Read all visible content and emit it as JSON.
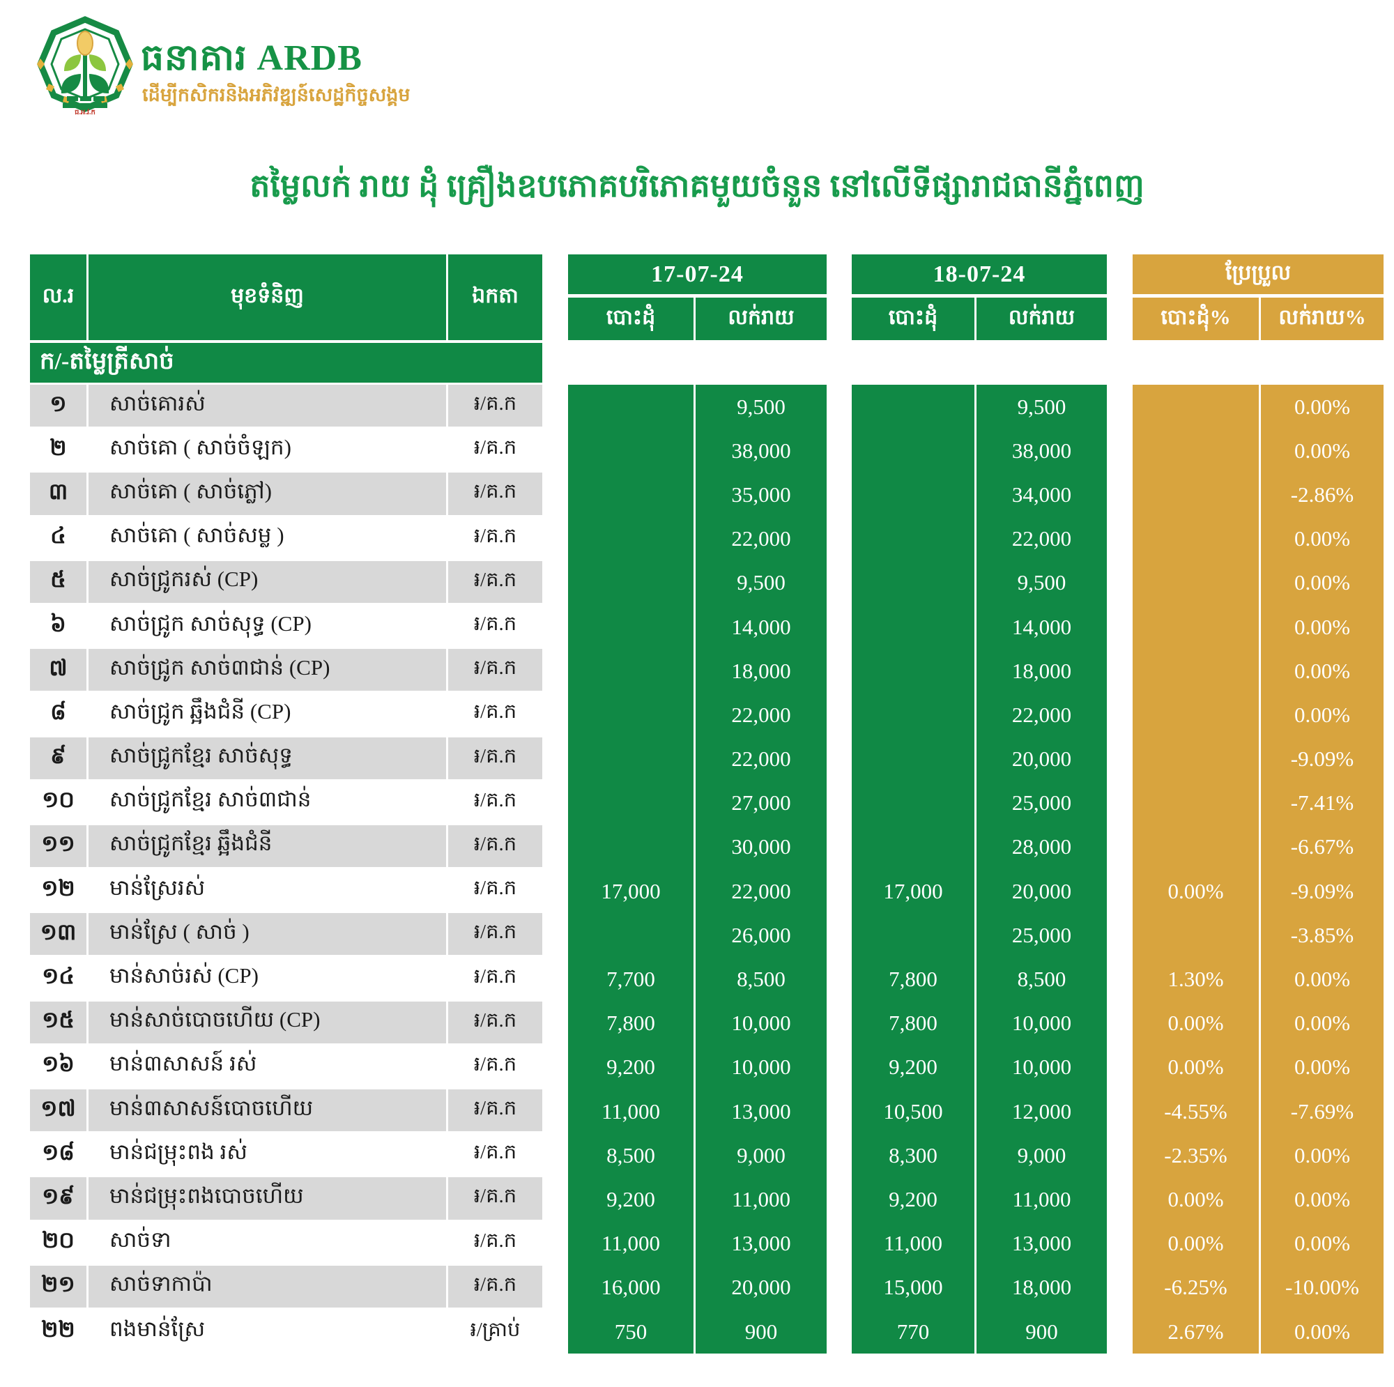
{
  "logo": {
    "bank_name": "ធនាគារ ARDB",
    "tagline": "ដើម្បីកសិករនិងអភិវឌ្ឍន៍សេដ្ឋកិច្ចសង្គម",
    "seal_text": "ធ.អ.វ.ក"
  },
  "title": "តម្លៃលក់ រាយ ដុំ គ្រឿងឧបភោគបរិភោគមួយចំនួន នៅលើទីផ្សារាជធានីភ្នំពេញ",
  "colors": {
    "green": "#108945",
    "gold": "#D8A43E",
    "stripe_gray": "#D8D8D8",
    "title_green": "#189B4C"
  },
  "table": {
    "headers": {
      "no": "ល.រ",
      "product": "មុខទំនិញ",
      "unit": "ឯកតា",
      "date1": "17-07-24",
      "date2": "18-07-24",
      "change": "ប្រែប្រួល",
      "wholesale": "បោះដុំ",
      "retail": "លក់រាយ",
      "wholesale_pct": "បោះដុំ%",
      "retail_pct": "លក់រាយ%"
    },
    "section": "ក/-តម្លៃត្រីសាច់",
    "rows": [
      {
        "no": "១",
        "product": "សាច់គោរស់",
        "unit": "៛/គ.ក",
        "d1w": "",
        "d1r": "9,500",
        "d2w": "",
        "d2r": "9,500",
        "cw": "",
        "cr": "0.00%"
      },
      {
        "no": "២",
        "product": "សាច់គោ ( សាច់ចំឡក)",
        "unit": "៛/គ.ក",
        "d1w": "",
        "d1r": "38,000",
        "d2w": "",
        "d2r": "38,000",
        "cw": "",
        "cr": "0.00%"
      },
      {
        "no": "៣",
        "product": "សាច់គោ ( សាច់ភ្លៅ)",
        "unit": "៛/គ.ក",
        "d1w": "",
        "d1r": "35,000",
        "d2w": "",
        "d2r": "34,000",
        "cw": "",
        "cr": "-2.86%"
      },
      {
        "no": "៤",
        "product": "សាច់គោ ( សាច់សម្ល )",
        "unit": "៛/គ.ក",
        "d1w": "",
        "d1r": "22,000",
        "d2w": "",
        "d2r": "22,000",
        "cw": "",
        "cr": "0.00%"
      },
      {
        "no": "៥",
        "product": "សាច់ជ្រូករស់ (CP)",
        "unit": "៛/គ.ក",
        "d1w": "",
        "d1r": "9,500",
        "d2w": "",
        "d2r": "9,500",
        "cw": "",
        "cr": "0.00%"
      },
      {
        "no": "៦",
        "product": "សាច់ជ្រូក សាច់សុទ្ធ (CP)",
        "unit": "៛/គ.ក",
        "d1w": "",
        "d1r": "14,000",
        "d2w": "",
        "d2r": "14,000",
        "cw": "",
        "cr": "0.00%"
      },
      {
        "no": "៧",
        "product": "សាច់ជ្រូក សាច់៣ជាន់ (CP)",
        "unit": "៛/គ.ក",
        "d1w": "",
        "d1r": "18,000",
        "d2w": "",
        "d2r": "18,000",
        "cw": "",
        "cr": "0.00%"
      },
      {
        "no": "៨",
        "product": "សាច់ជ្រូក ឆ្អឹងជំនី (CP)",
        "unit": "៛/គ.ក",
        "d1w": "",
        "d1r": "22,000",
        "d2w": "",
        "d2r": "22,000",
        "cw": "",
        "cr": "0.00%"
      },
      {
        "no": "៩",
        "product": "សាច់ជ្រូកខ្មែរ សាច់សុទ្ធ",
        "unit": "៛/គ.ក",
        "d1w": "",
        "d1r": "22,000",
        "d2w": "",
        "d2r": "20,000",
        "cw": "",
        "cr": "-9.09%"
      },
      {
        "no": "១០",
        "product": "សាច់ជ្រូកខ្មែរ សាច់៣ជាន់",
        "unit": "៛/គ.ក",
        "d1w": "",
        "d1r": "27,000",
        "d2w": "",
        "d2r": "25,000",
        "cw": "",
        "cr": "-7.41%"
      },
      {
        "no": "១១",
        "product": "សាច់ជ្រូកខ្មែរ ឆ្អឹងជំនី",
        "unit": "៛/គ.ក",
        "d1w": "",
        "d1r": "30,000",
        "d2w": "",
        "d2r": "28,000",
        "cw": "",
        "cr": "-6.67%"
      },
      {
        "no": "១២",
        "product": "មាន់ស្រែរស់",
        "unit": "៛/គ.ក",
        "d1w": "17,000",
        "d1r": "22,000",
        "d2w": "17,000",
        "d2r": "20,000",
        "cw": "0.00%",
        "cr": "-9.09%"
      },
      {
        "no": "១៣",
        "product": "មាន់ស្រែ ( សាច់ )",
        "unit": "៛/គ.ក",
        "d1w": "",
        "d1r": "26,000",
        "d2w": "",
        "d2r": "25,000",
        "cw": "",
        "cr": "-3.85%"
      },
      {
        "no": "១៤",
        "product": "មាន់សាច់រស់ (CP)",
        "unit": "៛/គ.ក",
        "d1w": "7,700",
        "d1r": "8,500",
        "d2w": "7,800",
        "d2r": "8,500",
        "cw": "1.30%",
        "cr": "0.00%"
      },
      {
        "no": "១៥",
        "product": "មាន់សាច់បោចហើយ (CP)",
        "unit": "៛/គ.ក",
        "d1w": "7,800",
        "d1r": "10,000",
        "d2w": "7,800",
        "d2r": "10,000",
        "cw": "0.00%",
        "cr": "0.00%"
      },
      {
        "no": "១៦",
        "product": "មាន់៣សាសន៍ រស់",
        "unit": "៛/គ.ក",
        "d1w": "9,200",
        "d1r": "10,000",
        "d2w": "9,200",
        "d2r": "10,000",
        "cw": "0.00%",
        "cr": "0.00%"
      },
      {
        "no": "១៧",
        "product": "មាន់៣សាសន៍បោចហើយ",
        "unit": "៛/គ.ក",
        "d1w": "11,000",
        "d1r": "13,000",
        "d2w": "10,500",
        "d2r": "12,000",
        "cw": "-4.55%",
        "cr": "-7.69%"
      },
      {
        "no": "១៨",
        "product": "មាន់ជម្រុះពង រស់",
        "unit": "៛/គ.ក",
        "d1w": "8,500",
        "d1r": "9,000",
        "d2w": "8,300",
        "d2r": "9,000",
        "cw": "-2.35%",
        "cr": "0.00%"
      },
      {
        "no": "១៩",
        "product": "មាន់ជម្រុះពងបោចហើយ",
        "unit": "៛/គ.ក",
        "d1w": "9,200",
        "d1r": "11,000",
        "d2w": "9,200",
        "d2r": "11,000",
        "cw": "0.00%",
        "cr": "0.00%"
      },
      {
        "no": "២០",
        "product": "សាច់ទា",
        "unit": "៛/គ.ក",
        "d1w": "11,000",
        "d1r": "13,000",
        "d2w": "11,000",
        "d2r": "13,000",
        "cw": "0.00%",
        "cr": "0.00%"
      },
      {
        "no": "២១",
        "product": "សាច់ទាកាប៉ា",
        "unit": "៛/គ.ក",
        "d1w": "16,000",
        "d1r": "20,000",
        "d2w": "15,000",
        "d2r": "18,000",
        "cw": "-6.25%",
        "cr": "-10.00%"
      },
      {
        "no": "២២",
        "product": "ពងមាន់ស្រែ",
        "unit": "៛/គ្រាប់",
        "d1w": "750",
        "d1r": "900",
        "d2w": "770",
        "d2r": "900",
        "cw": "2.67%",
        "cr": "0.00%"
      }
    ]
  }
}
